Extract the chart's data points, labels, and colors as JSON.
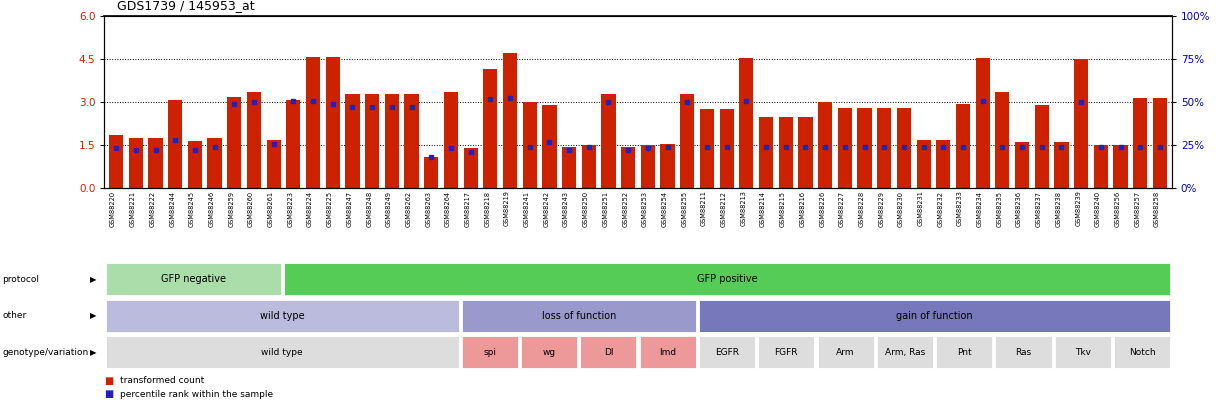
{
  "title": "GDS1739 / 145953_at",
  "ylim": [
    0,
    6
  ],
  "yticks_left": [
    0,
    1.5,
    3,
    4.5,
    6
  ],
  "yticks_right_labels": [
    "0%",
    "25%",
    "50%",
    "75%",
    "100%"
  ],
  "yticks_right_vals": [
    0,
    1.5,
    3,
    4.5,
    6
  ],
  "samples": [
    "GSM88220",
    "GSM88221",
    "GSM88222",
    "GSM88244",
    "GSM88245",
    "GSM88246",
    "GSM88259",
    "GSM88260",
    "GSM88261",
    "GSM88223",
    "GSM88224",
    "GSM88225",
    "GSM88247",
    "GSM88248",
    "GSM88249",
    "GSM88262",
    "GSM88263",
    "GSM88264",
    "GSM88217",
    "GSM88218",
    "GSM88219",
    "GSM88241",
    "GSM88242",
    "GSM88243",
    "GSM88250",
    "GSM88251",
    "GSM88252",
    "GSM88253",
    "GSM88254",
    "GSM88255",
    "GSM88211",
    "GSM88212",
    "GSM88213",
    "GSM88214",
    "GSM88215",
    "GSM88216",
    "GSM88226",
    "GSM88227",
    "GSM88228",
    "GSM88229",
    "GSM88230",
    "GSM88231",
    "GSM88232",
    "GSM88233",
    "GSM88234",
    "GSM88235",
    "GSM88236",
    "GSM88237",
    "GSM88238",
    "GSM88239",
    "GSM88240",
    "GSM88256",
    "GSM88257",
    "GSM88258"
  ],
  "bar_values": [
    1.85,
    1.75,
    1.75,
    3.08,
    1.65,
    1.75,
    3.2,
    3.35,
    1.68,
    3.08,
    4.58,
    4.58,
    3.28,
    3.28,
    3.28,
    3.28,
    1.1,
    3.35,
    1.4,
    4.15,
    4.72,
    3.0,
    2.9,
    1.45,
    1.5,
    3.3,
    1.45,
    1.5,
    1.55,
    3.28,
    2.75,
    2.75,
    4.55,
    2.5,
    2.5,
    2.5,
    3.0,
    2.8,
    2.8,
    2.8,
    2.8,
    1.68,
    1.68,
    2.95,
    4.55,
    3.35,
    1.6,
    2.9,
    1.6,
    4.5,
    1.5,
    1.5,
    3.15,
    3.15
  ],
  "percentile_values": [
    1.4,
    1.35,
    1.35,
    1.7,
    1.35,
    1.45,
    2.95,
    3.0,
    1.55,
    3.05,
    3.05,
    2.95,
    2.85,
    2.85,
    2.85,
    2.85,
    1.1,
    1.4,
    1.25,
    3.1,
    3.15,
    1.45,
    1.6,
    1.35,
    1.45,
    3.0,
    1.35,
    1.4,
    1.45,
    3.0,
    1.45,
    1.45,
    3.05,
    1.45,
    1.45,
    1.45,
    1.45,
    1.45,
    1.45,
    1.45,
    1.45,
    1.45,
    1.45,
    1.45,
    3.05,
    1.45,
    1.45,
    1.45,
    1.45,
    3.0,
    1.45,
    1.45,
    1.45,
    1.45
  ],
  "bar_color": "#cc2200",
  "percentile_color": "#2222bb",
  "hgrid_vals": [
    1.5,
    3.0,
    4.5
  ],
  "tick_color_left": "#cc2200",
  "tick_color_right": "#0000bb",
  "protocol_segments": [
    {
      "text": "GFP negative",
      "start": 0,
      "end": 9,
      "color": "#aaddaa"
    },
    {
      "text": "GFP positive",
      "start": 9,
      "end": 54,
      "color": "#55cc55"
    }
  ],
  "other_segments": [
    {
      "text": "wild type",
      "start": 0,
      "end": 18,
      "color": "#bbbbdd"
    },
    {
      "text": "loss of function",
      "start": 18,
      "end": 30,
      "color": "#9999cc"
    },
    {
      "text": "gain of function",
      "start": 30,
      "end": 54,
      "color": "#7777bb"
    }
  ],
  "genotype_segments": [
    {
      "text": "wild type",
      "start": 0,
      "end": 18,
      "color": "#dddddd"
    },
    {
      "text": "spi",
      "start": 18,
      "end": 21,
      "color": "#ee9999"
    },
    {
      "text": "wg",
      "start": 21,
      "end": 24,
      "color": "#ee9999"
    },
    {
      "text": "Dl",
      "start": 24,
      "end": 27,
      "color": "#ee9999"
    },
    {
      "text": "Imd",
      "start": 27,
      "end": 30,
      "color": "#ee9999"
    },
    {
      "text": "EGFR",
      "start": 30,
      "end": 33,
      "color": "#dddddd"
    },
    {
      "text": "FGFR",
      "start": 33,
      "end": 36,
      "color": "#dddddd"
    },
    {
      "text": "Arm",
      "start": 36,
      "end": 39,
      "color": "#dddddd"
    },
    {
      "text": "Arm, Ras",
      "start": 39,
      "end": 42,
      "color": "#dddddd"
    },
    {
      "text": "Pnt",
      "start": 42,
      "end": 45,
      "color": "#dddddd"
    },
    {
      "text": "Ras",
      "start": 45,
      "end": 48,
      "color": "#dddddd"
    },
    {
      "text": "Tkv",
      "start": 48,
      "end": 51,
      "color": "#dddddd"
    },
    {
      "text": "Notch",
      "start": 51,
      "end": 54,
      "color": "#dddddd"
    }
  ],
  "row_labels": [
    "protocol",
    "other",
    "genotype/variation"
  ],
  "legend_items": [
    {
      "label": "transformed count",
      "color": "#cc2200"
    },
    {
      "label": "percentile rank within the sample",
      "color": "#2222bb"
    }
  ],
  "n_samples": 54
}
